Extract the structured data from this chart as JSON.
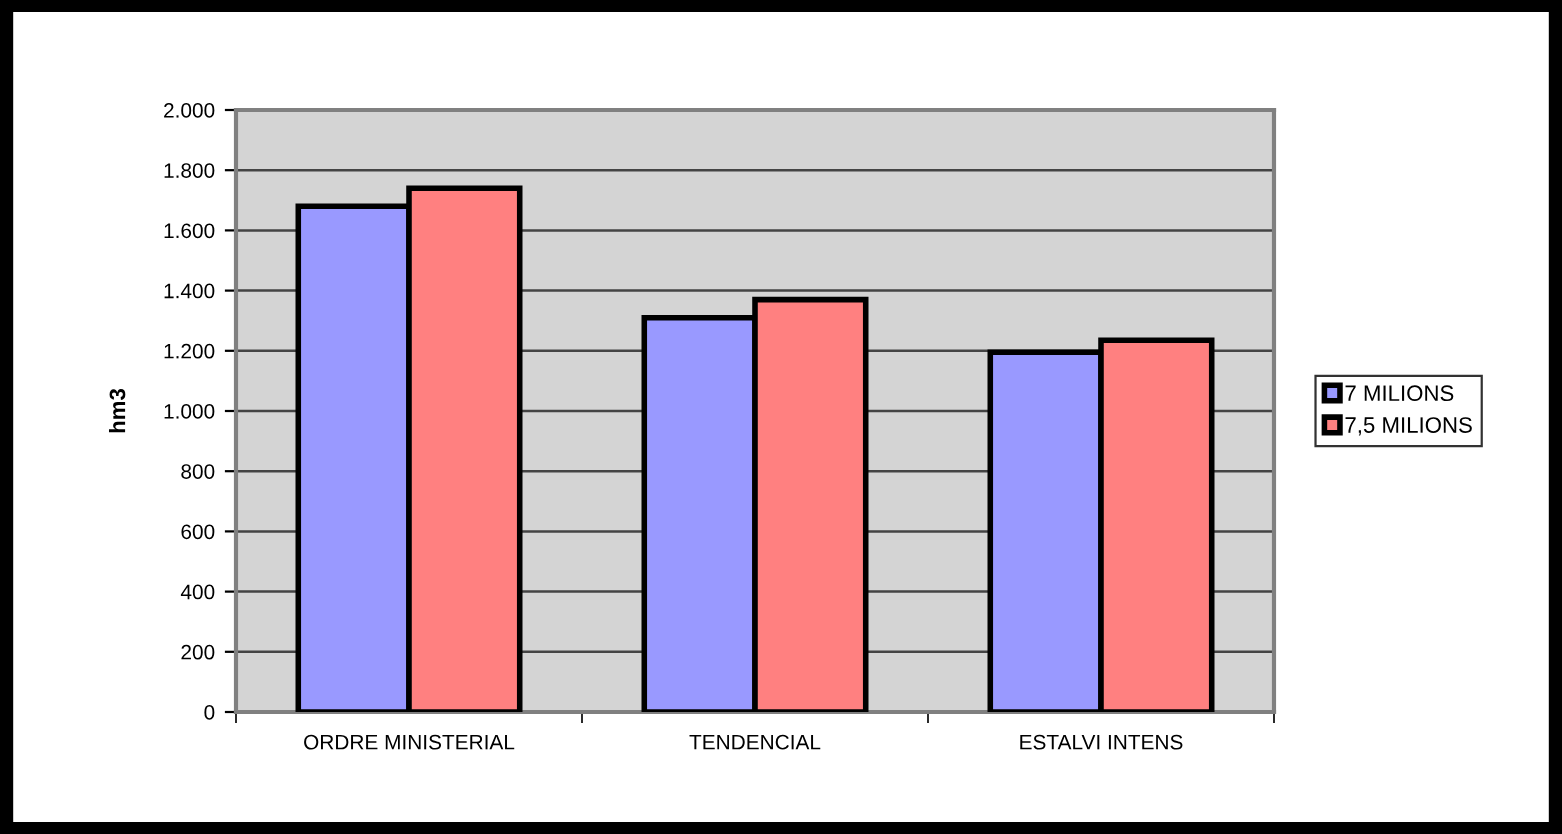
{
  "chart_data": {
    "type": "bar",
    "ylabel": "hm3",
    "categories": [
      "ORDRE MINISTERIAL",
      "TENDENCIAL",
      "ESTALVI INTENS"
    ],
    "series": [
      {
        "name": "7 MILIONS",
        "color": "#9999ff",
        "values": [
          1680,
          1310,
          1195
        ]
      },
      {
        "name": "7,5 MILIONS",
        "color": "#ff8080",
        "values": [
          1740,
          1370,
          1235
        ]
      }
    ],
    "ylim": [
      0,
      2000
    ],
    "yticks": [
      0,
      200,
      400,
      600,
      800,
      {
        "value": 1000,
        "label": "1.000"
      },
      {
        "value": 1200,
        "label": "1.200"
      },
      {
        "value": 1400,
        "label": "1.400"
      },
      {
        "value": 1600,
        "label": "1.600"
      },
      {
        "value": 1800,
        "label": "1.800"
      },
      {
        "value": 2000,
        "label": "2.000"
      }
    ],
    "grid": "y",
    "legend": "right"
  }
}
